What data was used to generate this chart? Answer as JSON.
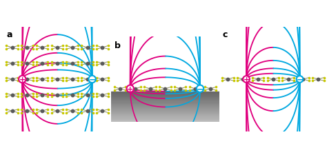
{
  "bg_color": "#ffffff",
  "panel_labels": [
    "a",
    "b",
    "c"
  ],
  "plus_color": "#e0007f",
  "minus_color": "#00a8e0",
  "atom_gray": "#5a5a5a",
  "atom_yellow": "#c8c800",
  "bond_color": "#909060",
  "substrate_top": "#999999",
  "substrate_bot": "#444444",
  "n_field_lines_a": 8,
  "n_field_lines_b": 7,
  "n_field_lines_c": 8
}
